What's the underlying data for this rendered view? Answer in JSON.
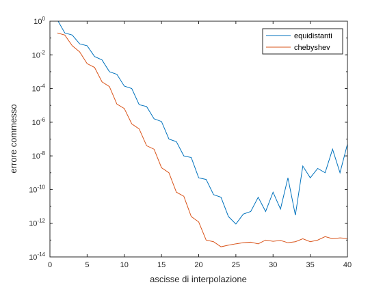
{
  "chart_data": {
    "type": "line",
    "title": "",
    "xlabel": "ascisse di interpolazione",
    "ylabel": "errore commesso",
    "xlim": [
      0,
      40
    ],
    "ylim_exponents": [
      -14,
      0
    ],
    "y_scale": "log",
    "grid": false,
    "legend_position": "top-right",
    "x_ticks": [
      0,
      5,
      10,
      15,
      20,
      25,
      30,
      35,
      40
    ],
    "y_ticks": [
      {
        "base": "10",
        "exp": "0"
      },
      {
        "base": "10",
        "exp": "-2"
      },
      {
        "base": "10",
        "exp": "-4"
      },
      {
        "base": "10",
        "exp": "-6"
      },
      {
        "base": "10",
        "exp": "-8"
      },
      {
        "base": "10",
        "exp": "-10"
      },
      {
        "base": "10",
        "exp": "-12"
      },
      {
        "base": "10",
        "exp": "-14"
      }
    ],
    "x": [
      1,
      2,
      3,
      4,
      5,
      6,
      7,
      8,
      9,
      10,
      11,
      12,
      13,
      14,
      15,
      16,
      17,
      18,
      19,
      20,
      21,
      22,
      23,
      24,
      25,
      26,
      27,
      28,
      29,
      30,
      31,
      32,
      33,
      34,
      35,
      36,
      37,
      38,
      39,
      40
    ],
    "series": [
      {
        "name": "equidistanti",
        "color": "#0072BD",
        "values": [
          1.2,
          0.2,
          0.15,
          0.045,
          0.035,
          0.008,
          0.005,
          0.001,
          0.0007,
          0.00014,
          0.0001,
          1.1e-05,
          8.5e-06,
          1.6e-06,
          1.1e-06,
          1e-07,
          7e-08,
          1e-08,
          8e-09,
          5e-10,
          4e-10,
          5e-11,
          3.5e-11,
          2.5e-12,
          9e-13,
          3.5e-12,
          5e-12,
          3.5e-11,
          5e-12,
          7e-11,
          7e-12,
          5e-10,
          3e-12,
          2.5e-09,
          5e-10,
          1.8e-09,
          1e-09,
          2.5e-08,
          1e-09,
          5e-08
        ]
      },
      {
        "name": "chebyshev",
        "color": "#D95319",
        "values": [
          0.2,
          0.15,
          0.035,
          0.015,
          0.003,
          0.0018,
          0.00025,
          0.00013,
          1.2e-05,
          6.5e-06,
          8e-07,
          4e-07,
          4e-08,
          2.5e-08,
          2e-09,
          1e-09,
          7e-11,
          4e-11,
          2.5e-12,
          1.2e-12,
          1e-13,
          8e-14,
          4e-14,
          5e-14,
          6e-14,
          7e-14,
          7.5e-14,
          6e-14,
          1e-13,
          8.5e-14,
          9.5e-14,
          7e-14,
          8e-14,
          1.2e-13,
          8e-14,
          1e-13,
          1.6e-13,
          1.2e-13,
          1.35e-13,
          1.25e-13
        ]
      }
    ]
  }
}
